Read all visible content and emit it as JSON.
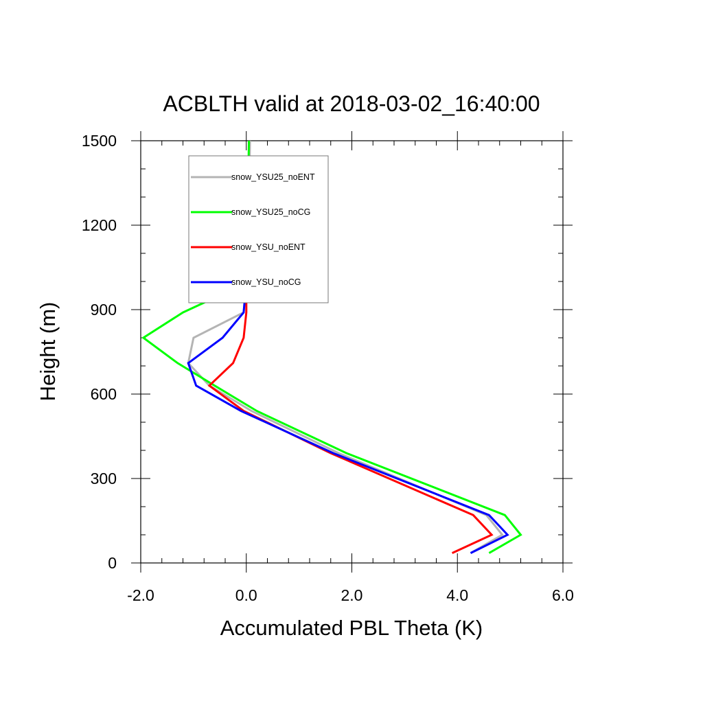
{
  "chart_data": {
    "type": "line",
    "title": "ACBLTH valid at 2018-03-02_16:40:00",
    "xlabel": "Accumulated PBL Theta (K)",
    "ylabel": "Height (m)",
    "xlim": [
      -2.0,
      6.0
    ],
    "ylim": [
      0,
      1500
    ],
    "xticks": [
      "-2.0",
      "0.0",
      "2.0",
      "4.0",
      "6.0"
    ],
    "xtick_values": [
      -2,
      0,
      2,
      4,
      6
    ],
    "yticks": [
      "0",
      "300",
      "600",
      "900",
      "1200",
      "1500"
    ],
    "ytick_values": [
      0,
      300,
      600,
      900,
      1200,
      1500
    ],
    "grid": false,
    "legend_position": "top-left",
    "series": [
      {
        "name": "snow_YSU25_noENT",
        "color": "#b4b4b4",
        "points": [
          [
            4.25,
            35
          ],
          [
            4.85,
            100
          ],
          [
            4.55,
            170
          ],
          [
            1.75,
            390
          ],
          [
            0.1,
            540
          ],
          [
            -0.7,
            630
          ],
          [
            -1.1,
            710
          ],
          [
            -1.0,
            800
          ],
          [
            -0.05,
            890
          ],
          [
            0.0,
            1000
          ],
          [
            0.05,
            1100
          ],
          [
            0.05,
            1300
          ],
          [
            0.07,
            1500
          ]
        ]
      },
      {
        "name": "snow_YSU25_noCG",
        "color": "#00ff00",
        "points": [
          [
            4.6,
            35
          ],
          [
            5.2,
            100
          ],
          [
            4.9,
            170
          ],
          [
            1.9,
            390
          ],
          [
            0.2,
            540
          ],
          [
            -0.6,
            630
          ],
          [
            -1.3,
            710
          ],
          [
            -1.95,
            800
          ],
          [
            -1.2,
            890
          ],
          [
            -0.05,
            990
          ],
          [
            0.0,
            1100
          ],
          [
            0.03,
            1300
          ],
          [
            0.05,
            1500
          ]
        ]
      },
      {
        "name": "snow_YSU_noENT",
        "color": "#ff0000",
        "points": [
          [
            3.9,
            35
          ],
          [
            4.65,
            100
          ],
          [
            4.3,
            170
          ],
          [
            1.6,
            390
          ],
          [
            -0.05,
            540
          ],
          [
            -0.7,
            630
          ],
          [
            -0.25,
            710
          ],
          [
            -0.05,
            800
          ],
          [
            0.0,
            890
          ],
          [
            0.0,
            1000
          ],
          [
            0.0,
            1100
          ]
        ]
      },
      {
        "name": "snow_YSU_noCG",
        "color": "#0000ff",
        "points": [
          [
            4.25,
            35
          ],
          [
            4.95,
            100
          ],
          [
            4.6,
            170
          ],
          [
            1.65,
            390
          ],
          [
            -0.1,
            540
          ],
          [
            -0.95,
            630
          ],
          [
            -1.1,
            710
          ],
          [
            -0.45,
            800
          ],
          [
            -0.05,
            890
          ],
          [
            0.0,
            1000
          ],
          [
            0.0,
            1100
          ]
        ]
      }
    ]
  }
}
